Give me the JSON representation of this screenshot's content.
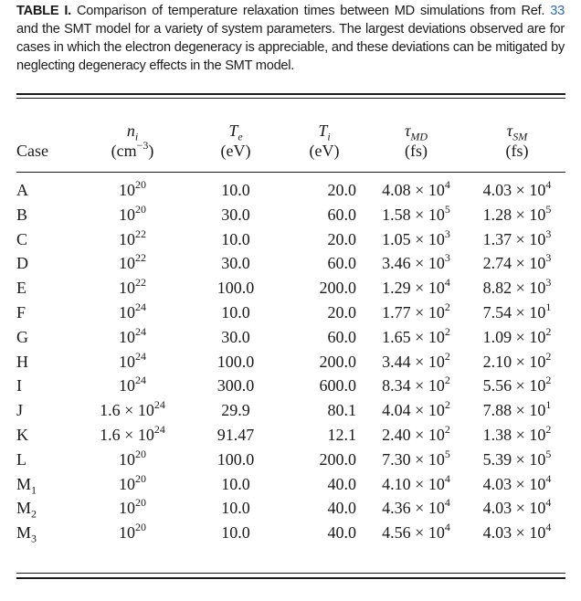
{
  "caption": {
    "label": "TABLE I.",
    "text_before_ref": " Comparison of temperature relaxation times between MD simulations from Ref. ",
    "ref": "33",
    "text_after_ref": " and the SMT model for a variety of system parameters. The largest deviations observed are for cases in which the electron degeneracy is appreciable, and these deviations can be mitigated by neglecting degeneracy effects in the SMT model."
  },
  "headers": {
    "case": "Case",
    "ni_symbol": "n",
    "ni_sub": "i",
    "ni_unit_base": "(cm",
    "ni_unit_exp": "−3",
    "ni_unit_close": ")",
    "te_symbol": "T",
    "te_sub": "e",
    "te_unit": "(eV)",
    "ti_symbol": "T",
    "ti_sub": "i",
    "ti_unit": "(eV)",
    "tmd_symbol": "τ",
    "tmd_sub": "MD",
    "tmd_unit": "(fs)",
    "tsm_symbol": "τ",
    "tsm_sub": "SM",
    "tsm_unit": "(fs)"
  },
  "rows": [
    {
      "case": "A",
      "case_sub": "",
      "ni_coef": "",
      "ni_exp": "20",
      "te": "10.0",
      "ti": "20.0",
      "tmd_m": "4.08",
      "tmd_e": "4",
      "tsm_m": "4.03",
      "tsm_e": "4"
    },
    {
      "case": "B",
      "case_sub": "",
      "ni_coef": "",
      "ni_exp": "20",
      "te": "30.0",
      "ti": "60.0",
      "tmd_m": "1.58",
      "tmd_e": "5",
      "tsm_m": "1.28",
      "tsm_e": "5"
    },
    {
      "case": "C",
      "case_sub": "",
      "ni_coef": "",
      "ni_exp": "22",
      "te": "10.0",
      "ti": "20.0",
      "tmd_m": "1.05",
      "tmd_e": "3",
      "tsm_m": "1.37",
      "tsm_e": "3"
    },
    {
      "case": "D",
      "case_sub": "",
      "ni_coef": "",
      "ni_exp": "22",
      "te": "30.0",
      "ti": "60.0",
      "tmd_m": "3.46",
      "tmd_e": "3",
      "tsm_m": "2.74",
      "tsm_e": "3"
    },
    {
      "case": "E",
      "case_sub": "",
      "ni_coef": "",
      "ni_exp": "22",
      "te": "100.0",
      "ti": "200.0",
      "tmd_m": "1.29",
      "tmd_e": "4",
      "tsm_m": "8.82",
      "tsm_e": "3"
    },
    {
      "case": "F",
      "case_sub": "",
      "ni_coef": "",
      "ni_exp": "24",
      "te": "10.0",
      "ti": "20.0",
      "tmd_m": "1.77",
      "tmd_e": "2",
      "tsm_m": "7.54",
      "tsm_e": "1"
    },
    {
      "case": "G",
      "case_sub": "",
      "ni_coef": "",
      "ni_exp": "24",
      "te": "30.0",
      "ti": "60.0",
      "tmd_m": "1.65",
      "tmd_e": "2",
      "tsm_m": "1.09",
      "tsm_e": "2"
    },
    {
      "case": "H",
      "case_sub": "",
      "ni_coef": "",
      "ni_exp": "24",
      "te": "100.0",
      "ti": "200.0",
      "tmd_m": "3.44",
      "tmd_e": "2",
      "tsm_m": "2.10",
      "tsm_e": "2"
    },
    {
      "case": "I",
      "case_sub": "",
      "ni_coef": "",
      "ni_exp": "24",
      "te": "300.0",
      "ti": "600.0",
      "tmd_m": "8.34",
      "tmd_e": "2",
      "tsm_m": "5.56",
      "tsm_e": "2"
    },
    {
      "case": "J",
      "case_sub": "",
      "ni_coef": "1.6 × ",
      "ni_exp": "24",
      "te": "29.9",
      "ti": "80.1",
      "tmd_m": "4.04",
      "tmd_e": "2",
      "tsm_m": "7.88",
      "tsm_e": "1"
    },
    {
      "case": "K",
      "case_sub": "",
      "ni_coef": "1.6 × ",
      "ni_exp": "24",
      "te": "91.47",
      "ti": "12.1",
      "tmd_m": "2.40",
      "tmd_e": "2",
      "tsm_m": "1.38",
      "tsm_e": "2"
    },
    {
      "case": "L",
      "case_sub": "",
      "ni_coef": "",
      "ni_exp": "20",
      "te": "100.0",
      "ti": "200.0",
      "tmd_m": "7.30",
      "tmd_e": "5",
      "tsm_m": "5.39",
      "tsm_e": "5"
    },
    {
      "case": "M",
      "case_sub": "1",
      "ni_coef": "",
      "ni_exp": "20",
      "te": "10.0",
      "ti": "40.0",
      "tmd_m": "4.10",
      "tmd_e": "4",
      "tsm_m": "4.03",
      "tsm_e": "4"
    },
    {
      "case": "M",
      "case_sub": "2",
      "ni_coef": "",
      "ni_exp": "20",
      "te": "10.0",
      "ti": "40.0",
      "tmd_m": "4.36",
      "tmd_e": "4",
      "tsm_m": "4.03",
      "tsm_e": "4"
    },
    {
      "case": "M",
      "case_sub": "3",
      "ni_coef": "",
      "ni_exp": "20",
      "te": "10.0",
      "ti": "40.0",
      "tmd_m": "4.56",
      "tmd_e": "4",
      "tsm_m": "4.03",
      "tsm_e": "4"
    }
  ]
}
